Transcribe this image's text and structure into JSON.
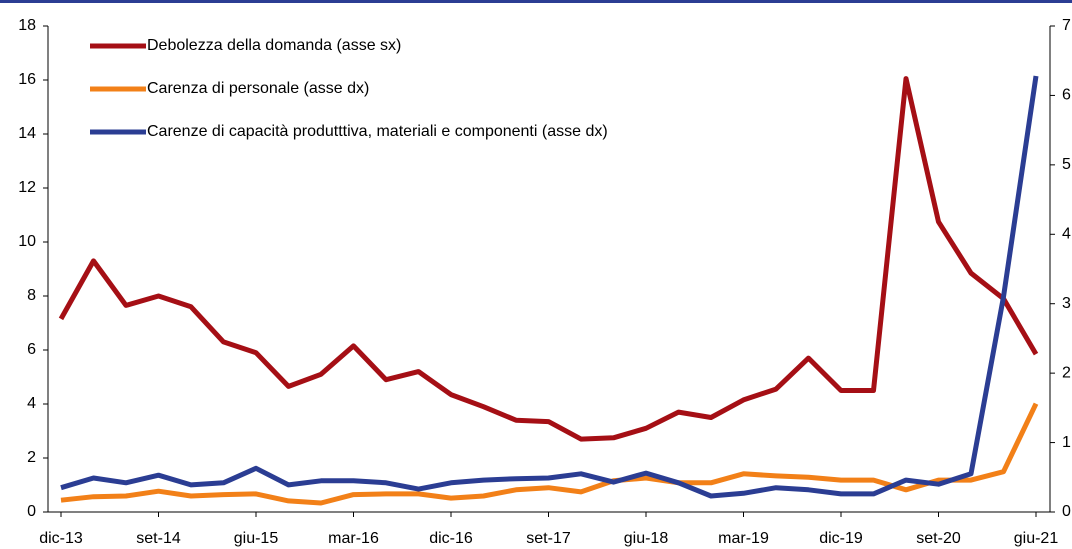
{
  "chart_data": {
    "type": "line",
    "categories": [
      "dic-13",
      null,
      null,
      "set-14",
      null,
      null,
      "giu-15",
      null,
      null,
      "mar-16",
      null,
      null,
      "dic-16",
      null,
      null,
      "set-17",
      null,
      null,
      "giu-18",
      null,
      null,
      "mar-19",
      null,
      null,
      "dic-19",
      null,
      null,
      "set-20",
      null,
      null,
      "giu-21"
    ],
    "ylim": [
      0,
      18
    ],
    "yticks": [
      0,
      2,
      4,
      6,
      8,
      10,
      12,
      14,
      16,
      18
    ],
    "y2lim": [
      0,
      7
    ],
    "y2ticks": [
      0,
      1,
      2,
      3,
      4,
      5,
      6,
      7
    ],
    "legend": "top-left",
    "series": [
      {
        "name": "Debolezza della domanda (asse sx)",
        "color": "#a50f15",
        "values": [
          7.15,
          9.3,
          7.65,
          8.0,
          7.6,
          6.3,
          5.9,
          4.65,
          5.1,
          6.15,
          4.9,
          5.2,
          4.35,
          3.9,
          3.4,
          3.35,
          2.7,
          2.75,
          3.1,
          3.7,
          3.5,
          4.15,
          4.55,
          5.7,
          4.5,
          4.5,
          16.05,
          10.75,
          8.85,
          7.9,
          5.85
        ]
      },
      {
        "name": "Carenza di personale (asse dx)",
        "color": "#f28018",
        "axis": "y2",
        "values": [
          0.17,
          0.22,
          0.23,
          0.3,
          0.23,
          0.25,
          0.26,
          0.16,
          0.13,
          0.25,
          0.26,
          0.26,
          0.2,
          0.23,
          0.32,
          0.35,
          0.29,
          0.45,
          0.49,
          0.42,
          0.42,
          0.55,
          0.52,
          0.5,
          0.46,
          0.46,
          0.32,
          0.46,
          0.46,
          0.58,
          1.56
        ]
      },
      {
        "name": "Carenze di capacità produtttiva, materiali e componenti (asse dx)",
        "color": "#2b3d93",
        "axis": "y2",
        "values": [
          0.35,
          0.49,
          0.42,
          0.53,
          0.39,
          0.42,
          0.63,
          0.39,
          0.45,
          0.45,
          0.42,
          0.33,
          0.42,
          0.46,
          0.48,
          0.49,
          0.55,
          0.43,
          0.56,
          0.42,
          0.23,
          0.27,
          0.35,
          0.32,
          0.26,
          0.26,
          0.46,
          0.4,
          0.55,
          3.1,
          6.28
        ]
      }
    ]
  }
}
